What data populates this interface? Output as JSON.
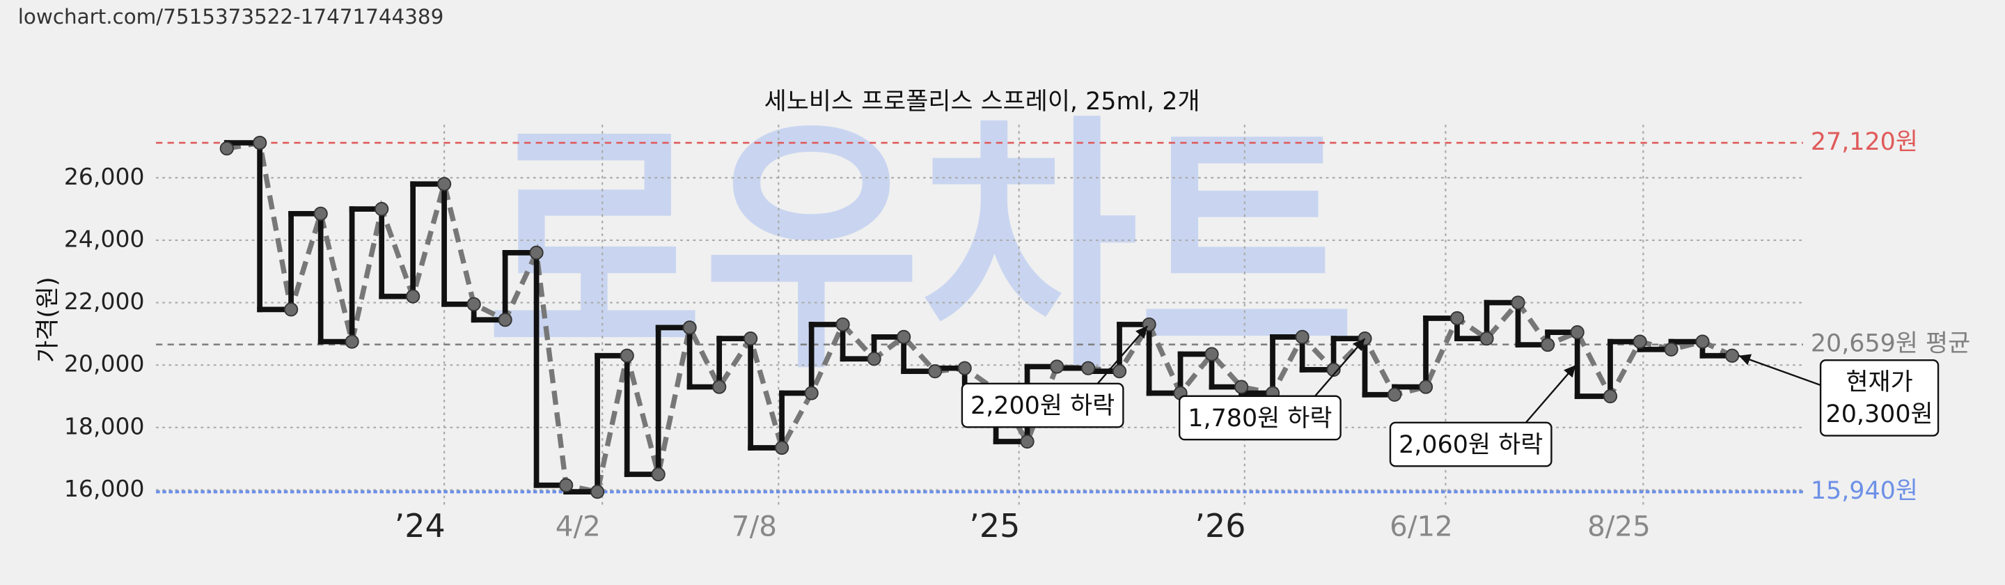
{
  "header": {
    "url": "lowchart.com/7515373522-17471744389"
  },
  "chart_data": {
    "type": "line",
    "title": "세노비스 프로폴리스 스프레이, 25ml, 2개",
    "y_label": "가격(원)",
    "watermark": "로우차트",
    "x": [
      4.3,
      6.3,
      8.2,
      10.0,
      11.9,
      13.7,
      15.6,
      17.5,
      19.3,
      21.2,
      23.1,
      24.9,
      26.8,
      28.6,
      30.5,
      32.4,
      34.2,
      36.1,
      38.0,
      39.8,
      41.7,
      43.6,
      45.4,
      47.3,
      49.1,
      51.0,
      52.9,
      54.7,
      56.6,
      58.5,
      60.3,
      62.2,
      64.1,
      65.9,
      67.8,
      69.6,
      71.5,
      73.4,
      75.2,
      77.1,
      79.0,
      80.8,
      82.7,
      84.5,
      86.3,
      88.3,
      90.1,
      92.0,
      93.9,
      95.7
    ],
    "series": [
      {
        "color": "#111111",
        "trend_color": "#777777",
        "step": "pre",
        "values": [
          26940,
          27120,
          21780,
          24850,
          20750,
          25000,
          22200,
          25800,
          21950,
          21450,
          23600,
          16150,
          15940,
          20300,
          16500,
          21200,
          19300,
          20850,
          17350,
          19100,
          21300,
          20200,
          20900,
          19800,
          19900,
          19200,
          17550,
          19950,
          19900,
          19800,
          21300,
          19100,
          20350,
          19300,
          19100,
          20900,
          19850,
          20850,
          19050,
          19300,
          21500,
          20850,
          22000,
          20650,
          21050,
          19000,
          20750,
          20500,
          20750,
          20300
        ]
      }
    ],
    "xlim": [
      0,
      100
    ],
    "xticks": [
      {
        "value": 17.5,
        "label": "’24"
      },
      {
        "value": 27.1,
        "label": "4/2"
      },
      {
        "value": 37.8,
        "label": "7/8"
      },
      {
        "value": 52.4,
        "label": "’25"
      },
      {
        "value": 66.1,
        "label": "’26"
      },
      {
        "value": 78.3,
        "label": "6/12"
      },
      {
        "value": 90.3,
        "label": "8/25"
      }
    ],
    "ylim": [
      15500,
      27700
    ],
    "yticks": [
      {
        "value": 16000,
        "label": "16,000"
      },
      {
        "value": 18000,
        "label": "18,000"
      },
      {
        "value": 20000,
        "label": "20,000"
      },
      {
        "value": 22000,
        "label": "22,000"
      },
      {
        "value": 24000,
        "label": "24,000"
      },
      {
        "value": 26000,
        "label": "26,000"
      }
    ],
    "grid": true,
    "reference_lines": [
      {
        "value": 27120,
        "label": "27,120원",
        "color": "#e05a5a"
      },
      {
        "value": 20659,
        "label": "20,659원 평균",
        "color": "#808080"
      },
      {
        "value": 15940,
        "label": "15,940원",
        "color": "#6d90e6"
      }
    ],
    "annotations": [
      {
        "text": "2,200원 하락",
        "x": 60.2,
        "y": 21250
      },
      {
        "text": "1,780원 하락",
        "x": 73.4,
        "y": 20850
      },
      {
        "text": "2,060원 하락",
        "x": 86.2,
        "y": 20000
      },
      {
        "text": [
          "현재가",
          "20,300원"
        ],
        "x": 96.1,
        "y": 20300
      }
    ]
  }
}
